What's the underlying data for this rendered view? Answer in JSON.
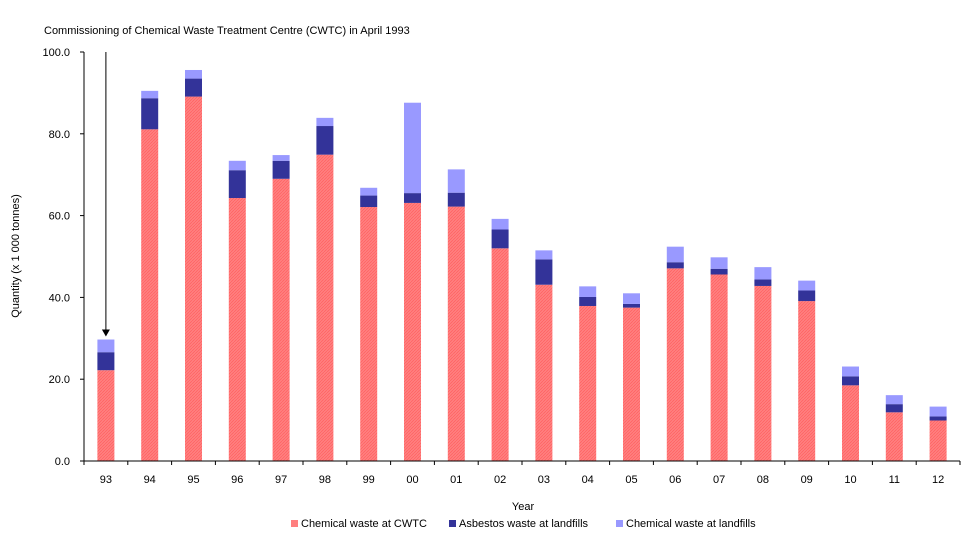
{
  "chart_data": {
    "type": "bar",
    "stacked": true,
    "annotation": "Commissioning of Chemical Waste Treatment Centre (CWTC) in April 1993",
    "xlabel": "Year",
    "ylabel": "Quantity (x 1 000 tonnes)",
    "ylim": [
      0,
      100
    ],
    "yticks": [
      "0.0",
      "20.0",
      "40.0",
      "60.0",
      "80.0",
      "100.0"
    ],
    "grid": false,
    "legend_position": "bottom",
    "categories": [
      "93",
      "94",
      "95",
      "96",
      "97",
      "98",
      "99",
      "00",
      "01",
      "02",
      "03",
      "04",
      "05",
      "06",
      "07",
      "08",
      "09",
      "10",
      "11",
      "12"
    ],
    "series": [
      {
        "name": "Chemical waste at CWTC",
        "color": "#ff7f7f",
        "values": [
          22.2,
          81.1,
          89.1,
          64.3,
          69.0,
          74.9,
          62.1,
          63.1,
          62.2,
          52.0,
          43.1,
          37.9,
          37.5,
          47.1,
          45.6,
          42.8,
          39.1,
          18.5,
          11.9,
          9.9
        ]
      },
      {
        "name": "Asbestos waste at landfills",
        "color": "#333399",
        "values": [
          4.4,
          7.6,
          4.4,
          6.8,
          4.4,
          7.0,
          2.8,
          2.4,
          3.4,
          4.6,
          6.2,
          2.2,
          0.9,
          1.5,
          1.4,
          1.6,
          2.6,
          2.2,
          2.0,
          1.0
        ]
      },
      {
        "name": "Chemical waste at landfills",
        "color": "#9999ff",
        "values": [
          3.1,
          1.8,
          2.1,
          2.3,
          1.4,
          2.0,
          1.9,
          22.1,
          5.7,
          2.6,
          2.2,
          2.6,
          2.6,
          3.8,
          2.8,
          3.0,
          2.4,
          2.4,
          2.2,
          2.4
        ]
      }
    ]
  }
}
